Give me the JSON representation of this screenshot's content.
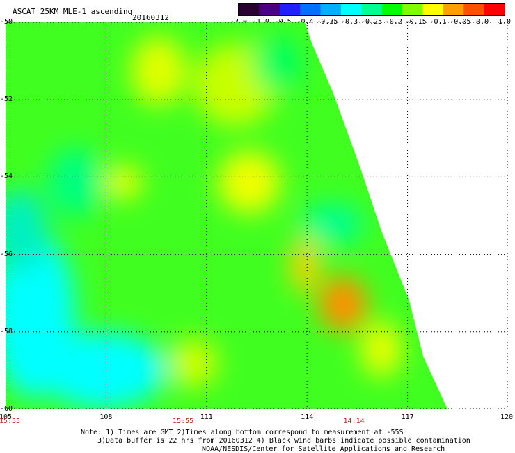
{
  "header": {
    "title": "ASCAT 25KM MLE-1 ascending",
    "date": "20160312"
  },
  "colorbar": {
    "labels": [
      "-3.0",
      "-1.0",
      "-0.5",
      "-0.4",
      "-0.35",
      "-0.3",
      "-0.25",
      "-0.2",
      "-0.15",
      "-0.1",
      "-0.05",
      "0.0",
      "1.0"
    ],
    "colors": [
      "#2a0030",
      "#4b0082",
      "#2020ff",
      "#0070ff",
      "#00b0ff",
      "#00ffff",
      "#00ff90",
      "#00ff00",
      "#80ff00",
      "#ffff00",
      "#ffa000",
      "#ff5000",
      "#ff0000"
    ]
  },
  "axes": {
    "x_ticks": [
      "105",
      "108",
      "111",
      "114",
      "117",
      "120"
    ],
    "y_ticks": [
      "-50",
      "-52",
      "-54",
      "-56",
      "-58",
      "-60"
    ]
  },
  "times": [
    {
      "label": "15:55",
      "lon": 105
    },
    {
      "label": "15:55",
      "lon": 110.3
    },
    {
      "label": "14:14",
      "lon": 115.4
    }
  ],
  "notes": [
    "Note: 1) Times are GMT 2)Times along bottom correspond to measurement at -55S",
    "3)Data buffer is 22 hrs from 20160312 4) Black wind barbs indicate possible contamination",
    "NOAA/NESDIS/Center for Satellite Applications and Research"
  ]
}
